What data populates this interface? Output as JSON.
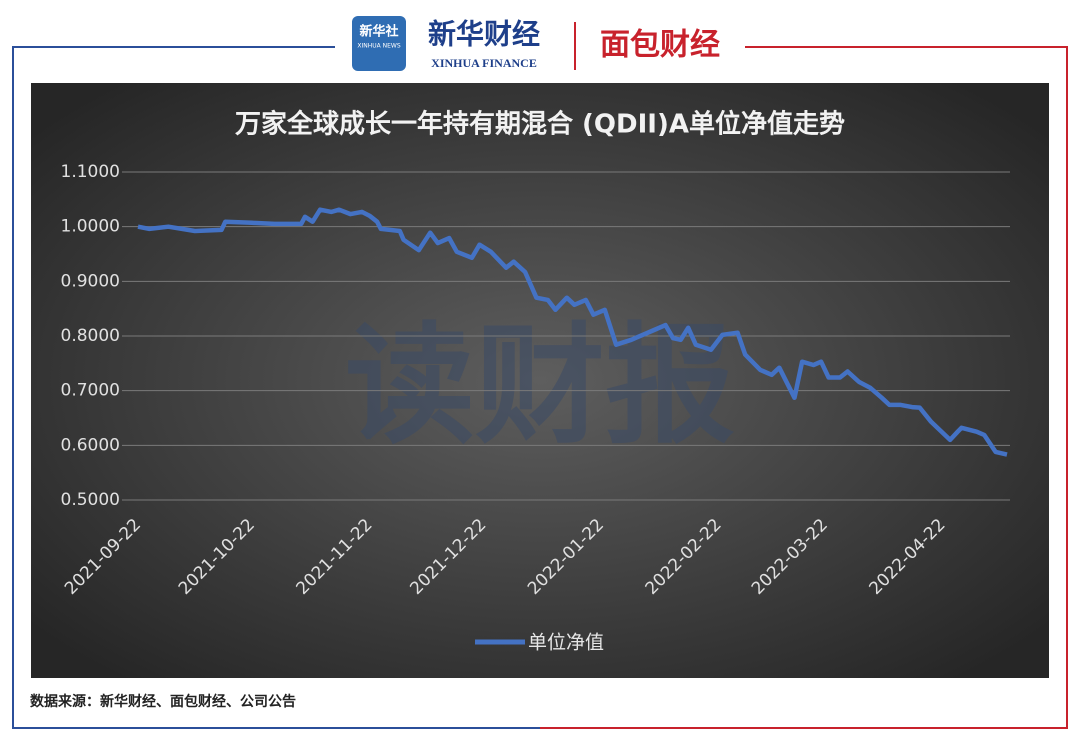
{
  "header": {
    "logo1": "新华社",
    "logo1_sub": "XINHUA NEWS",
    "logo2": "新华财经",
    "logo2_sub": "XINHUA FINANCE",
    "logo3": "面包财经"
  },
  "watermark": "读财报",
  "footer": {
    "source": "数据来源：新华财经、面包财经、公司公告"
  },
  "chart_data": {
    "type": "line",
    "title": "万家全球成长一年持有期混合 (QDII)A单位净值走势",
    "x": [
      "2021-09-22",
      "2021-09-25",
      "2021-09-30",
      "2021-10-07",
      "2021-10-14",
      "2021-10-15",
      "2021-10-22",
      "2021-10-28",
      "2021-11-04",
      "2021-11-05",
      "2021-11-07",
      "2021-11-09",
      "2021-11-12",
      "2021-11-14",
      "2021-11-17",
      "2021-11-20",
      "2021-11-22",
      "2021-11-24",
      "2021-11-25",
      "2021-11-30",
      "2021-12-01",
      "2021-12-05",
      "2021-12-08",
      "2021-12-10",
      "2021-12-13",
      "2021-12-15",
      "2021-12-19",
      "2021-12-21",
      "2021-12-24",
      "2021-12-28",
      "2021-12-30",
      "2022-01-02",
      "2022-01-05",
      "2022-01-08",
      "2022-01-10",
      "2022-01-13",
      "2022-01-15",
      "2022-01-18",
      "2022-01-20",
      "2022-01-23",
      "2022-01-26",
      "2022-01-30",
      "2022-02-05",
      "2022-02-08",
      "2022-02-10",
      "2022-02-12",
      "2022-02-14",
      "2022-02-16",
      "2022-02-20",
      "2022-02-23",
      "2022-02-27",
      "2022-03-01",
      "2022-03-05",
      "2022-03-08",
      "2022-03-10",
      "2022-03-14",
      "2022-03-16",
      "2022-03-19",
      "2022-03-21",
      "2022-03-23",
      "2022-03-26",
      "2022-03-28",
      "2022-03-31",
      "2022-04-03",
      "2022-04-06",
      "2022-04-08",
      "2022-04-11",
      "2022-04-14",
      "2022-04-16",
      "2022-04-19",
      "2022-04-24",
      "2022-04-26",
      "2022-04-27",
      "2022-05-01",
      "2022-05-03",
      "2022-05-06",
      "2022-05-09"
    ],
    "series": [
      {
        "name": "单位净值",
        "color": "#4472c4",
        "values": [
          1.0,
          0.996,
          1.0,
          0.992,
          0.994,
          1.009,
          1.007,
          1.005,
          1.005,
          1.018,
          1.009,
          1.031,
          1.027,
          1.031,
          1.023,
          1.027,
          1.02,
          1.009,
          0.996,
          0.992,
          0.976,
          0.957,
          0.989,
          0.97,
          0.979,
          0.954,
          0.943,
          0.967,
          0.954,
          0.925,
          0.936,
          0.917,
          0.87,
          0.866,
          0.848,
          0.87,
          0.857,
          0.866,
          0.839,
          0.848,
          0.784,
          0.793,
          0.811,
          0.82,
          0.796,
          0.793,
          0.815,
          0.784,
          0.775,
          0.802,
          0.806,
          0.766,
          0.738,
          0.729,
          0.742,
          0.687,
          0.753,
          0.747,
          0.753,
          0.724,
          0.724,
          0.735,
          0.716,
          0.705,
          0.687,
          0.674,
          0.674,
          0.67,
          0.669,
          0.643,
          0.61,
          0.625,
          0.632,
          0.625,
          0.619,
          0.588,
          0.583
        ]
      }
    ],
    "xlim": [
      "2021-09-22",
      "2022-05-09"
    ],
    "xticks": [
      "2021-09-22",
      "2021-10-22",
      "2021-11-22",
      "2021-12-22",
      "2022-01-22",
      "2022-02-22",
      "2022-03-22",
      "2022-04-22"
    ],
    "ylim": [
      0.5,
      1.1
    ],
    "yticks": [
      {
        "value": 0.5,
        "label": "0.5000"
      },
      {
        "value": 0.6,
        "label": "0.6000"
      },
      {
        "value": 0.7,
        "label": "0.7000"
      },
      {
        "value": 0.8,
        "label": "0.8000"
      },
      {
        "value": 0.9,
        "label": "0.9000"
      },
      {
        "value": 1.0,
        "label": "1.0000"
      },
      {
        "value": 1.1,
        "label": "1.1000"
      }
    ],
    "grid": true,
    "legend": "bottom"
  }
}
